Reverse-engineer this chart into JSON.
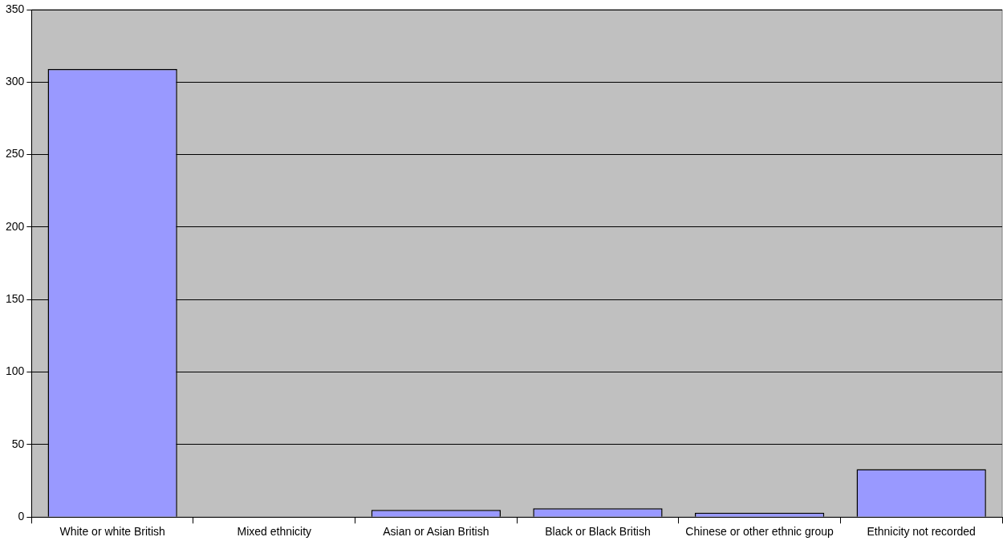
{
  "chart_data": {
    "type": "bar",
    "categories": [
      "White or white British",
      "Mixed ethnicity",
      "Asian or Asian British",
      "Black or Black British",
      "Chinese or other ethnic group",
      "Ethnicity not recorded"
    ],
    "values": [
      309,
      0,
      5,
      6,
      3,
      33
    ],
    "color": "#9999ff",
    "ylim": [
      0,
      350
    ],
    "yticks": [
      0,
      50,
      100,
      150,
      200,
      250,
      300,
      350
    ],
    "grid": "y",
    "legend": false
  }
}
